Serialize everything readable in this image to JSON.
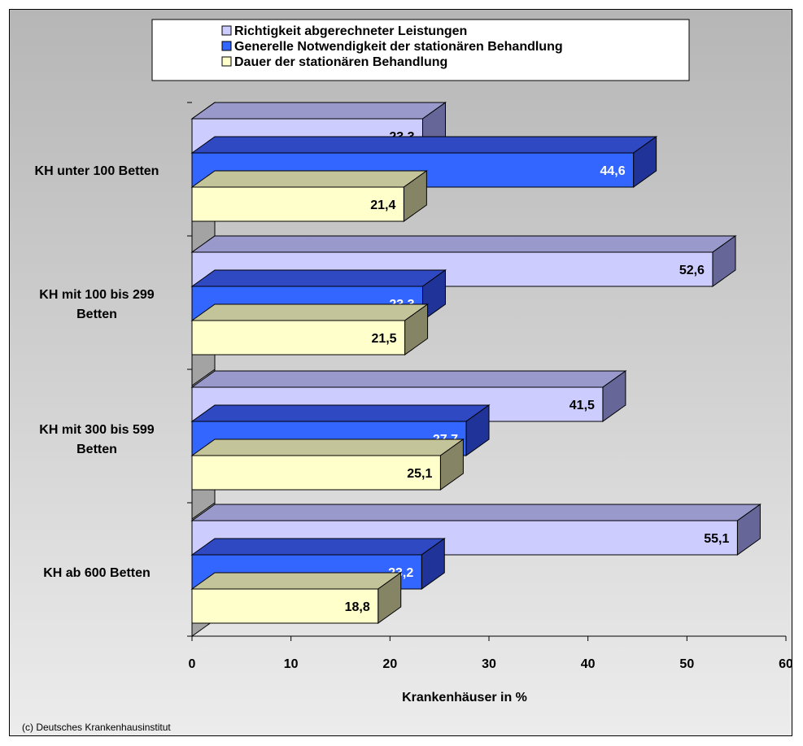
{
  "credit": "(c) Deutsches Krankenhausinstitut",
  "colors": {
    "series_front": [
      "#ccccff",
      "#3366ff",
      "#ffffcc"
    ],
    "series_top": [
      "#9999cc",
      "#2e49c2",
      "#c4c49a"
    ],
    "series_side": [
      "#666699",
      "#1f3399",
      "#858566"
    ]
  },
  "chart_data": {
    "type": "bar",
    "orientation": "horizontal",
    "style": "3d",
    "categories": [
      "KH unter 100 Betten",
      "KH mit 100 bis 299 Betten",
      "KH mit 300 bis 599 Betten",
      "KH ab 600 Betten"
    ],
    "category_lines": [
      [
        "KH unter 100 Betten"
      ],
      [
        "KH mit 100 bis 299",
        "Betten"
      ],
      [
        "KH mit 300 bis 599",
        "Betten"
      ],
      [
        "KH ab 600 Betten"
      ]
    ],
    "series": [
      {
        "name": "Richtigkeit abgerechneter Leistungen",
        "values": [
          23.3,
          52.6,
          41.5,
          55.1
        ],
        "labels": [
          "23,3",
          "52,6",
          "41,5",
          "55,1"
        ]
      },
      {
        "name": "Generelle Notwendigkeit der stationären Behandlung",
        "values": [
          44.6,
          23.3,
          27.7,
          23.2
        ],
        "labels": [
          "44,6",
          "23,3",
          "27,7",
          "23,2"
        ]
      },
      {
        "name": "Dauer der stationären Behandlung",
        "values": [
          21.4,
          21.5,
          25.1,
          18.8
        ],
        "labels": [
          "21,4",
          "21,5",
          "25,1",
          "18,8"
        ]
      }
    ],
    "xlabel": "Krankenhäuser in %",
    "xlim": [
      0,
      60
    ],
    "xticks": [
      0,
      10,
      20,
      30,
      40,
      50,
      60
    ],
    "legend_position": "top",
    "grid": false
  }
}
